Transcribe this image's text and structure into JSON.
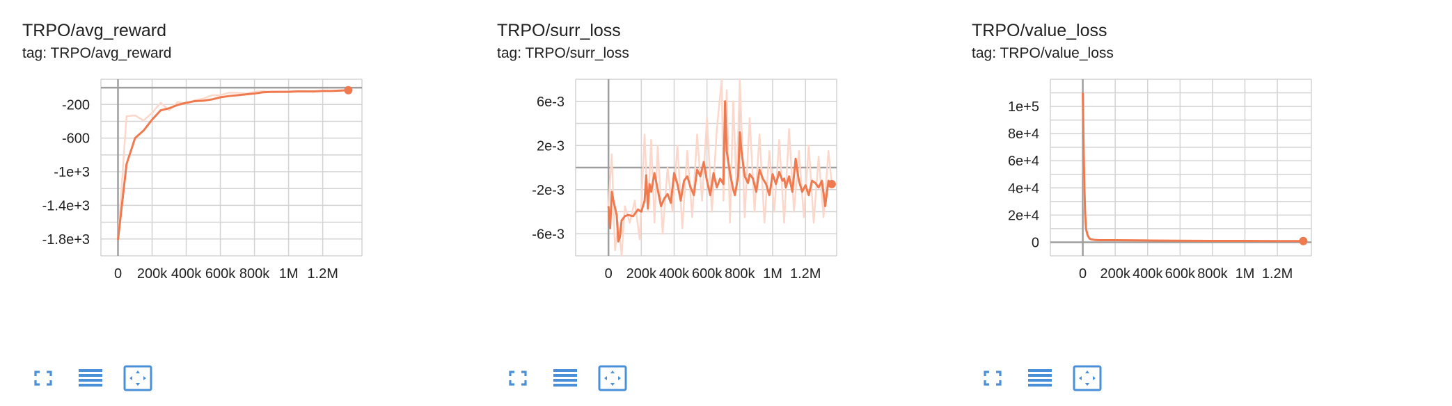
{
  "colors": {
    "line": "#ef7a4f",
    "raw": "#fbd8cb",
    "grid": "#d3d3d3",
    "axis": "#9e9e9e",
    "icon": "#4a90d9"
  },
  "toolbar_icons": [
    "fullscreen-icon",
    "toggle-log-icon",
    "fit-domain-icon"
  ],
  "panels": [
    {
      "title": "TRPO/avg_reward",
      "tag": "tag: TRPO/avg_reward",
      "chart_data": {
        "type": "line",
        "xlim": [
          -100000,
          1430000
        ],
        "ylim": [
          -2000,
          100
        ],
        "xticks": [
          0,
          200000,
          400000,
          600000,
          800000,
          1000000,
          1200000
        ],
        "xtick_labels": [
          "0",
          "200k",
          "400k",
          "600k",
          "800k",
          "1M",
          "1.2M"
        ],
        "yticks": [
          -200,
          -600,
          -1000,
          -1400,
          -1800
        ],
        "ytick_labels": [
          "-200",
          "-600",
          "-1e+3",
          "-1.4e+3",
          "-1.8e+3"
        ],
        "minor_yticks": [
          0,
          -400,
          -800,
          -1200,
          -1600
        ],
        "smoothed": {
          "x": [
            0,
            50000,
            100000,
            150000,
            200000,
            250000,
            300000,
            350000,
            400000,
            450000,
            500000,
            550000,
            600000,
            650000,
            700000,
            750000,
            800000,
            850000,
            900000,
            950000,
            1000000,
            1050000,
            1100000,
            1150000,
            1200000,
            1250000,
            1300000,
            1350000
          ],
          "y": [
            -1810,
            -910,
            -600,
            -510,
            -380,
            -270,
            -245,
            -205,
            -180,
            -160,
            -155,
            -140,
            -115,
            -100,
            -90,
            -80,
            -70,
            -55,
            -50,
            -50,
            -50,
            -45,
            -45,
            -45,
            -40,
            -40,
            -35,
            -30
          ]
        },
        "raw": {
          "x": [
            0,
            50000,
            100000,
            150000,
            200000,
            250000,
            300000,
            350000,
            400000,
            450000,
            500000,
            550000,
            600000,
            650000,
            700000,
            750000,
            800000,
            850000,
            900000,
            950000,
            1000000,
            1050000,
            1100000,
            1150000,
            1200000,
            1250000,
            1300000,
            1350000
          ],
          "y": [
            -1810,
            -340,
            -330,
            -390,
            -300,
            -180,
            -270,
            -170,
            -190,
            -150,
            -130,
            -90,
            -90,
            -60,
            -60,
            -70,
            -50,
            -40,
            -55,
            -50,
            -45,
            -40,
            -40,
            -45,
            -35,
            -40,
            -30,
            -30
          ]
        }
      }
    },
    {
      "title": "TRPO/surr_loss",
      "tag": "tag: TRPO/surr_loss",
      "chart_data": {
        "type": "line",
        "xlim": [
          -200000,
          1390000
        ],
        "ylim": [
          -0.008,
          0.008
        ],
        "xticks": [
          0,
          200000,
          400000,
          600000,
          800000,
          1000000,
          1200000
        ],
        "xtick_labels": [
          "0",
          "200k",
          "400k",
          "600k",
          "800k",
          "1M",
          "1.2M"
        ],
        "yticks": [
          0.006,
          0.002,
          -0.002,
          -0.006
        ],
        "ytick_labels": [
          "6e-3",
          "2e-3",
          "-2e-3",
          "-6e-3"
        ],
        "minor_yticks": [
          0.004,
          0.0,
          -0.004
        ],
        "smoothed": {
          "x": [
            0,
            10000,
            20000,
            30000,
            50000,
            60000,
            70000,
            80000,
            100000,
            120000,
            150000,
            180000,
            200000,
            220000,
            230000,
            240000,
            250000,
            260000,
            280000,
            300000,
            320000,
            340000,
            360000,
            380000,
            400000,
            420000,
            440000,
            460000,
            480000,
            500000,
            520000,
            540000,
            560000,
            580000,
            600000,
            620000,
            640000,
            660000,
            680000,
            700000,
            710000,
            720000,
            740000,
            760000,
            770000,
            790000,
            800000,
            810000,
            830000,
            850000,
            860000,
            880000,
            900000,
            920000,
            940000,
            960000,
            980000,
            1000000,
            1020000,
            1040000,
            1060000,
            1070000,
            1080000,
            1100000,
            1120000,
            1140000,
            1160000,
            1180000,
            1200000,
            1220000,
            1240000,
            1260000,
            1280000,
            1300000,
            1320000,
            1340000,
            1360000
          ],
          "y": [
            -0.0035,
            -0.0055,
            -0.0022,
            -0.003,
            -0.0043,
            -0.0067,
            -0.0063,
            -0.0048,
            -0.0044,
            -0.0043,
            -0.0044,
            -0.0038,
            -0.004,
            -0.003,
            -0.0007,
            -0.0037,
            -0.0015,
            -0.0022,
            -0.0005,
            -0.002,
            -0.0035,
            -0.0028,
            -0.0024,
            -0.0032,
            -0.0005,
            -0.0015,
            -0.003,
            -0.0012,
            -0.0008,
            -0.0018,
            -0.0025,
            -0.0002,
            -0.0008,
            0.0005,
            -0.0012,
            -0.0025,
            -0.0005,
            -0.0018,
            -0.001,
            -0.0015,
            0.006,
            0.0015,
            -0.0005,
            -0.002,
            -0.0025,
            -0.0008,
            0.0032,
            0.0015,
            -0.0008,
            -0.0014,
            -0.0006,
            -0.001,
            -0.0022,
            -0.0002,
            -0.001,
            -0.0015,
            -0.0025,
            -0.0006,
            -0.0015,
            -0.0004,
            -0.0012,
            -0.001,
            -0.0018,
            -0.0008,
            -0.0022,
            0.0008,
            -0.0012,
            -0.0022,
            -0.0016,
            -0.0025,
            -0.0012,
            -0.0014,
            -0.0018,
            -0.0012,
            -0.0035,
            -0.0012,
            -0.0015
          ]
        },
        "raw": {
          "x": [
            0,
            20000,
            40000,
            60000,
            80000,
            100000,
            130000,
            160000,
            190000,
            220000,
            240000,
            260000,
            280000,
            300000,
            330000,
            360000,
            390000,
            420000,
            450000,
            480000,
            510000,
            540000,
            570000,
            600000,
            630000,
            660000,
            690000,
            700000,
            720000,
            740000,
            760000,
            780000,
            800000,
            830000,
            860000,
            890000,
            920000,
            950000,
            980000,
            1010000,
            1040000,
            1070000,
            1100000,
            1130000,
            1160000,
            1190000,
            1220000,
            1250000,
            1280000,
            1310000,
            1340000,
            1360000
          ],
          "y": [
            -0.0035,
            0.0012,
            -0.0075,
            -0.005,
            -0.0085,
            -0.0035,
            -0.005,
            -0.003,
            -0.0065,
            0.003,
            -0.004,
            0.0025,
            -0.005,
            0.002,
            -0.006,
            0.0,
            -0.004,
            0.002,
            -0.0055,
            0.0015,
            -0.0045,
            0.003,
            -0.003,
            0.0045,
            -0.004,
            0.0035,
            0.008,
            -0.003,
            0.007,
            -0.005,
            0.006,
            -0.002,
            0.008,
            -0.0045,
            0.0045,
            -0.004,
            0.003,
            -0.005,
            0.0015,
            -0.004,
            0.0025,
            -0.005,
            0.0035,
            -0.004,
            0.0015,
            -0.0045,
            0.002,
            -0.005,
            0.001,
            -0.0045,
            0.0015,
            -0.0015
          ]
        }
      }
    },
    {
      "title": "TRPO/value_loss",
      "tag": "tag: TRPO/value_loss",
      "chart_data": {
        "type": "line",
        "xlim": [
          -200000,
          1410000
        ],
        "ylim": [
          -10000,
          120000
        ],
        "xticks": [
          0,
          200000,
          400000,
          600000,
          800000,
          1000000,
          1200000
        ],
        "xtick_labels": [
          "0",
          "200k",
          "400k",
          "600k",
          "800k",
          "1M",
          "1.2M"
        ],
        "yticks": [
          100000,
          80000,
          60000,
          40000,
          20000,
          0
        ],
        "ytick_labels": [
          "1e+5",
          "8e+4",
          "6e+4",
          "4e+4",
          "2e+4",
          "0"
        ],
        "minor_yticks": [
          110000,
          90000,
          70000,
          50000,
          30000,
          10000
        ],
        "smoothed": {
          "x": [
            0,
            5000,
            10000,
            15000,
            20000,
            30000,
            40000,
            50000,
            70000,
            100000,
            200000,
            400000,
            600000,
            800000,
            1000000,
            1200000,
            1360000
          ],
          "y": [
            110000,
            70000,
            40000,
            20000,
            10000,
            5000,
            3000,
            2200,
            1800,
            1500,
            1500,
            1300,
            1100,
            1000,
            1000,
            900,
            900
          ]
        },
        "raw": {
          "x": [
            0,
            5000,
            10000,
            20000,
            40000,
            70000,
            100000,
            200000,
            400000,
            600000,
            800000,
            1000000,
            1200000,
            1360000
          ],
          "y": [
            110000,
            60000,
            25000,
            8000,
            2500,
            1600,
            1400,
            1400,
            1200,
            1100,
            1000,
            950,
            900,
            900
          ]
        }
      }
    }
  ]
}
